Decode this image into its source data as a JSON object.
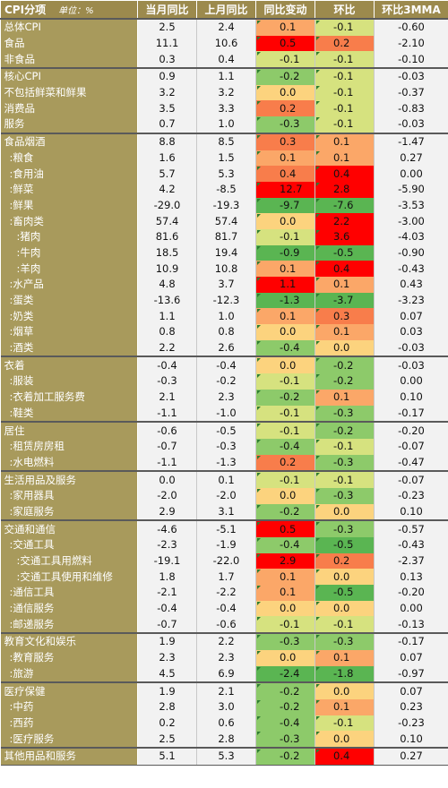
{
  "chart_data": {
    "type": "table",
    "columns": [
      "CPI分项",
      "当月同比",
      "上月同比",
      "同比变动",
      "环比",
      "环比3MMA"
    ],
    "unit_label": "单位：%",
    "rows": [
      {
        "name": "总体CPI",
        "level": 0,
        "group_start": true,
        "values": [
          "2.5",
          "2.4",
          "0.1",
          "-0.1",
          "-0.60"
        ]
      },
      {
        "name": "食品",
        "level": 0,
        "group_start": false,
        "values": [
          "11.1",
          "10.6",
          "0.5",
          "0.2",
          "-2.10"
        ]
      },
      {
        "name": "非食品",
        "level": 0,
        "group_start": false,
        "values": [
          "0.3",
          "0.4",
          "-0.1",
          "-0.1",
          "-0.10"
        ]
      },
      {
        "name": "核心CPI",
        "level": 0,
        "group_start": true,
        "values": [
          "0.9",
          "1.1",
          "-0.2",
          "-0.1",
          "-0.03"
        ]
      },
      {
        "name": "不包括鲜菜和鲜果",
        "level": 0,
        "group_start": false,
        "values": [
          "3.2",
          "3.2",
          "0.0",
          "-0.1",
          "-0.37"
        ]
      },
      {
        "name": "消费品",
        "level": 0,
        "group_start": false,
        "values": [
          "3.5",
          "3.3",
          "0.2",
          "-0.1",
          "-0.83"
        ]
      },
      {
        "name": "服务",
        "level": 0,
        "group_start": false,
        "values": [
          "0.7",
          "1.0",
          "-0.3",
          "-0.1",
          "-0.03"
        ]
      },
      {
        "name": "食品烟酒",
        "level": 0,
        "group_start": true,
        "values": [
          "8.8",
          "8.5",
          "0.3",
          "0.1",
          "-1.47"
        ]
      },
      {
        "name": ":粮食",
        "level": 1,
        "group_start": false,
        "values": [
          "1.6",
          "1.5",
          "0.1",
          "0.1",
          "0.27"
        ]
      },
      {
        "name": ":食用油",
        "level": 1,
        "group_start": false,
        "values": [
          "5.7",
          "5.3",
          "0.4",
          "0.4",
          "0.00"
        ]
      },
      {
        "name": ":鲜菜",
        "level": 1,
        "group_start": false,
        "values": [
          "4.2",
          "-8.5",
          "12.7",
          "2.8",
          "-5.90"
        ]
      },
      {
        "name": ":鲜果",
        "level": 1,
        "group_start": false,
        "values": [
          "-29.0",
          "-19.3",
          "-9.7",
          "-7.6",
          "-3.53"
        ]
      },
      {
        "name": ":畜肉类",
        "level": 1,
        "group_start": false,
        "values": [
          "57.4",
          "57.4",
          "0.0",
          "2.2",
          "-3.00"
        ]
      },
      {
        "name": ":猪肉",
        "level": 2,
        "group_start": false,
        "values": [
          "81.6",
          "81.7",
          "-0.1",
          "3.6",
          "-4.03"
        ]
      },
      {
        "name": ":牛肉",
        "level": 2,
        "group_start": false,
        "values": [
          "18.5",
          "19.4",
          "-0.9",
          "-0.5",
          "-0.90"
        ]
      },
      {
        "name": ":羊肉",
        "level": 2,
        "group_start": false,
        "values": [
          "10.9",
          "10.8",
          "0.1",
          "0.4",
          "-0.43"
        ]
      },
      {
        "name": ":水产品",
        "level": 1,
        "group_start": false,
        "values": [
          "4.8",
          "3.7",
          "1.1",
          "0.1",
          "0.43"
        ]
      },
      {
        "name": ":蛋类",
        "level": 1,
        "group_start": false,
        "values": [
          "-13.6",
          "-12.3",
          "-1.3",
          "-3.7",
          "-3.23"
        ]
      },
      {
        "name": ":奶类",
        "level": 1,
        "group_start": false,
        "values": [
          "1.1",
          "1.0",
          "0.1",
          "0.3",
          "0.07"
        ]
      },
      {
        "name": ":烟草",
        "level": 1,
        "group_start": false,
        "values": [
          "0.8",
          "0.8",
          "0.0",
          "0.1",
          "0.03"
        ]
      },
      {
        "name": ":酒类",
        "level": 1,
        "group_start": false,
        "values": [
          "2.2",
          "2.6",
          "-0.4",
          "0.0",
          "-0.03"
        ]
      },
      {
        "name": "衣着",
        "level": 0,
        "group_start": true,
        "values": [
          "-0.4",
          "-0.4",
          "0.0",
          "-0.2",
          "-0.03"
        ]
      },
      {
        "name": ":服装",
        "level": 1,
        "group_start": false,
        "values": [
          "-0.3",
          "-0.2",
          "-0.1",
          "-0.2",
          "0.00"
        ]
      },
      {
        "name": ":衣着加工服务费",
        "level": 1,
        "group_start": false,
        "values": [
          "2.1",
          "2.3",
          "-0.2",
          "0.1",
          "0.10"
        ]
      },
      {
        "name": ":鞋类",
        "level": 1,
        "group_start": false,
        "values": [
          "-1.1",
          "-1.0",
          "-0.1",
          "-0.3",
          "-0.17"
        ]
      },
      {
        "name": "居住",
        "level": 0,
        "group_start": true,
        "values": [
          "-0.6",
          "-0.5",
          "-0.1",
          "-0.2",
          "-0.20"
        ]
      },
      {
        "name": ":租赁房房租",
        "level": 1,
        "group_start": false,
        "values": [
          "-0.7",
          "-0.3",
          "-0.4",
          "-0.1",
          "-0.07"
        ]
      },
      {
        "name": ":水电燃料",
        "level": 1,
        "group_start": false,
        "values": [
          "-1.1",
          "-1.3",
          "0.2",
          "-0.3",
          "-0.47"
        ]
      },
      {
        "name": "生活用品及服务",
        "level": 0,
        "group_start": true,
        "values": [
          "0.0",
          "0.1",
          "-0.1",
          "-0.1",
          "-0.07"
        ]
      },
      {
        "name": ":家用器具",
        "level": 1,
        "group_start": false,
        "values": [
          "-2.0",
          "-2.0",
          "0.0",
          "-0.3",
          "-0.23"
        ]
      },
      {
        "name": ":家庭服务",
        "level": 1,
        "group_start": false,
        "values": [
          "2.9",
          "3.1",
          "-0.2",
          "0.0",
          "0.10"
        ]
      },
      {
        "name": "交通和通信",
        "level": 0,
        "group_start": true,
        "values": [
          "-4.6",
          "-5.1",
          "0.5",
          "-0.3",
          "-0.57"
        ]
      },
      {
        "name": ":交通工具",
        "level": 1,
        "group_start": false,
        "values": [
          "-2.3",
          "-1.9",
          "-0.4",
          "-0.5",
          "-0.43"
        ]
      },
      {
        "name": ":交通工具用燃料",
        "level": 2,
        "group_start": false,
        "values": [
          "-19.1",
          "-22.0",
          "2.9",
          "0.2",
          "-2.37"
        ]
      },
      {
        "name": ":交通工具使用和维修",
        "level": 2,
        "group_start": false,
        "values": [
          "1.8",
          "1.7",
          "0.1",
          "0.0",
          "0.13"
        ]
      },
      {
        "name": ":通信工具",
        "level": 1,
        "group_start": false,
        "values": [
          "-2.1",
          "-2.2",
          "0.1",
          "-0.5",
          "-0.20"
        ]
      },
      {
        "name": ":通信服务",
        "level": 1,
        "group_start": false,
        "values": [
          "-0.4",
          "-0.4",
          "0.0",
          "0.0",
          "0.00"
        ]
      },
      {
        "name": ":邮递服务",
        "level": 1,
        "group_start": false,
        "values": [
          "-0.7",
          "-0.6",
          "-0.1",
          "-0.1",
          "-0.13"
        ]
      },
      {
        "name": "教育文化和娱乐",
        "level": 0,
        "group_start": true,
        "values": [
          "1.9",
          "2.2",
          "-0.3",
          "-0.3",
          "-0.17"
        ]
      },
      {
        "name": ":教育服务",
        "level": 1,
        "group_start": false,
        "values": [
          "2.3",
          "2.3",
          "0.0",
          "0.1",
          "0.07"
        ]
      },
      {
        "name": ":旅游",
        "level": 1,
        "group_start": false,
        "values": [
          "4.5",
          "6.9",
          "-2.4",
          "-1.8",
          "-0.97"
        ]
      },
      {
        "name": "医疗保健",
        "level": 0,
        "group_start": true,
        "values": [
          "1.9",
          "2.1",
          "-0.2",
          "0.0",
          "0.07"
        ]
      },
      {
        "name": ":中药",
        "level": 1,
        "group_start": false,
        "values": [
          "2.8",
          "3.0",
          "-0.2",
          "0.1",
          "0.23"
        ]
      },
      {
        "name": ":西药",
        "level": 1,
        "group_start": false,
        "values": [
          "0.2",
          "0.6",
          "-0.4",
          "-0.1",
          "-0.23"
        ]
      },
      {
        "name": ":医疗服务",
        "level": 1,
        "group_start": false,
        "values": [
          "2.5",
          "2.8",
          "-0.3",
          "0.0",
          "0.10"
        ]
      },
      {
        "name": "其他用品和服务",
        "level": 0,
        "group_start": true,
        "values": [
          "5.1",
          "5.3",
          "-0.2",
          "0.4",
          "0.27"
        ]
      }
    ],
    "heatmap_colors": {
      "strong_up": "#ff0000",
      "up": "#f87d4b",
      "slight_up": "#fba768",
      "flat": "#fcd37e",
      "slight_down": "#d6e27f",
      "down": "#8dca6a",
      "strong_down": "#5ab552"
    }
  }
}
